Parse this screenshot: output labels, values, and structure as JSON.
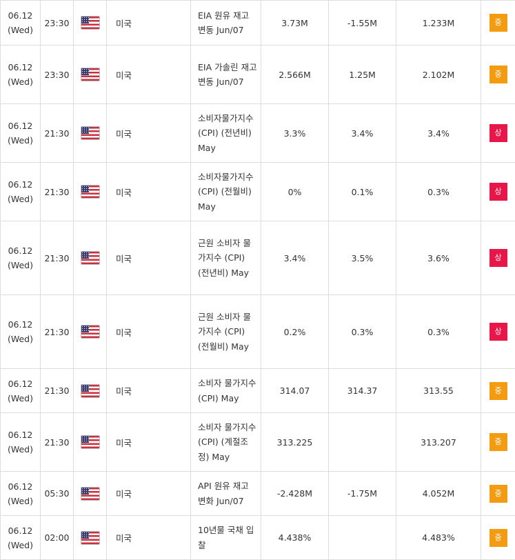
{
  "rows": [
    {
      "date": "06.12",
      "day": "(Wed)",
      "time": "23:30",
      "country": "미국",
      "event": "EIA 원유 재고 변동 Jun/07",
      "actual": "3.73M",
      "forecast": "-1.55M",
      "previous": "1.233M",
      "importance": "중",
      "level": "mid",
      "flag_icon": "us-flag-icon"
    },
    {
      "date": "06.12",
      "day": "(Wed)",
      "time": "23:30",
      "country": "미국",
      "event": "EIA 가솔린 재고 변동 Jun/07",
      "actual": "2.566M",
      "forecast": "1.25M",
      "previous": "2.102M",
      "importance": "중",
      "level": "mid",
      "flag_icon": "us-flag-icon"
    },
    {
      "date": "06.12",
      "day": "(Wed)",
      "time": "21:30",
      "country": "미국",
      "event": "소비자물가지수 (CPI) (전년비) May",
      "actual": "3.3%",
      "forecast": "3.4%",
      "previous": "3.4%",
      "importance": "상",
      "level": "high",
      "flag_icon": "us-flag-icon"
    },
    {
      "date": "06.12",
      "day": "(Wed)",
      "time": "21:30",
      "country": "미국",
      "event": "소비자물가지수 (CPI) (전월비) May",
      "actual": "0%",
      "forecast": "0.1%",
      "previous": "0.3%",
      "importance": "상",
      "level": "high",
      "flag_icon": "us-flag-icon"
    },
    {
      "date": "06.12",
      "day": "(Wed)",
      "time": "21:30",
      "country": "미국",
      "event": "근원 소비자 물가지수 (CPI) (전년비) May",
      "actual": "3.4%",
      "forecast": "3.5%",
      "previous": "3.6%",
      "importance": "상",
      "level": "high",
      "flag_icon": "us-flag-icon"
    },
    {
      "date": "06.12",
      "day": "(Wed)",
      "time": "21:30",
      "country": "미국",
      "event": "근원 소비자 물가지수 (CPI) (전월비) May",
      "actual": "0.2%",
      "forecast": "0.3%",
      "previous": "0.3%",
      "importance": "상",
      "level": "high",
      "flag_icon": "us-flag-icon"
    },
    {
      "date": "06.12",
      "day": "(Wed)",
      "time": "21:30",
      "country": "미국",
      "event": "소비자 물가지수(CPI) May",
      "actual": "314.07",
      "forecast": "314.37",
      "previous": "313.55",
      "importance": "중",
      "level": "mid",
      "flag_icon": "us-flag-icon"
    },
    {
      "date": "06.12",
      "day": "(Wed)",
      "time": "21:30",
      "country": "미국",
      "event": "소비자 물가지수(CPI) (계절조정) May",
      "actual": "313.225",
      "forecast": "",
      "previous": "313.207",
      "importance": "중",
      "level": "mid",
      "flag_icon": "us-flag-icon"
    },
    {
      "date": "06.12",
      "day": "(Wed)",
      "time": "05:30",
      "country": "미국",
      "event": "API 원유 재고 변화 Jun/07",
      "actual": "-2.428M",
      "forecast": "-1.75M",
      "previous": "4.052M",
      "importance": "중",
      "level": "mid",
      "flag_icon": "us-flag-icon"
    },
    {
      "date": "06.12",
      "day": "(Wed)",
      "time": "02:00",
      "country": "미국",
      "event": "10년물 국채 입찰",
      "actual": "4.438%",
      "forecast": "",
      "previous": "4.483%",
      "importance": "중",
      "level": "mid",
      "flag_icon": "us-flag-icon"
    }
  ],
  "colors": {
    "mid": "#f39c12",
    "high": "#e8174a",
    "border": "#dddddd",
    "text": "#333333"
  }
}
